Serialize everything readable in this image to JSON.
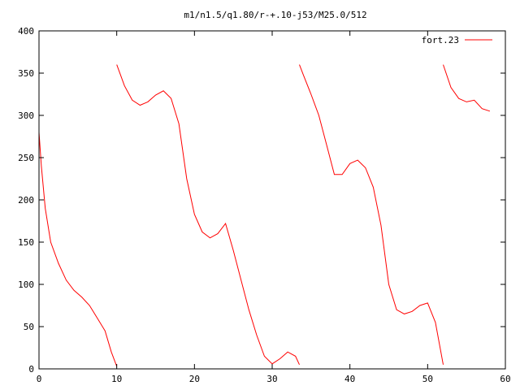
{
  "chart_data": {
    "type": "line",
    "title": "m1/n1.5/q1.80/r-+.10-j53/M25.0/512",
    "xlabel": "",
    "ylabel": "",
    "xlim": [
      0,
      60
    ],
    "ylim": [
      0,
      400
    ],
    "xticks": [
      0,
      10,
      20,
      30,
      40,
      50,
      60
    ],
    "yticks": [
      0,
      50,
      100,
      150,
      200,
      250,
      300,
      350,
      400
    ],
    "grid": false,
    "legend_position": "top-right",
    "series": [
      {
        "name": "fort.23",
        "color": "#ff0000",
        "values": [
          [
            0,
            280
          ],
          [
            0.3,
            240
          ],
          [
            0.8,
            190
          ],
          [
            1.5,
            150
          ],
          [
            2.5,
            125
          ],
          [
            3.5,
            105
          ],
          [
            4.5,
            93
          ],
          [
            5.5,
            85
          ],
          [
            6.5,
            75
          ],
          [
            7.5,
            60
          ],
          [
            8.5,
            45
          ],
          [
            9.3,
            20
          ],
          [
            10.0,
            3
          ],
          [
            10.0,
            360
          ],
          [
            11,
            335
          ],
          [
            12,
            318
          ],
          [
            13,
            312
          ],
          [
            14,
            316
          ],
          [
            15,
            324
          ],
          [
            16,
            329
          ],
          [
            17,
            320
          ],
          [
            18,
            290
          ],
          [
            19,
            225
          ],
          [
            20,
            183
          ],
          [
            21,
            162
          ],
          [
            22,
            155
          ],
          [
            23,
            160
          ],
          [
            24,
            172
          ],
          [
            25,
            140
          ],
          [
            26,
            105
          ],
          [
            27,
            70
          ],
          [
            28,
            40
          ],
          [
            29,
            15
          ],
          [
            30,
            6
          ],
          [
            31,
            12
          ],
          [
            32,
            20
          ],
          [
            33,
            15
          ],
          [
            33.5,
            5
          ],
          [
            33.5,
            360
          ],
          [
            34,
            348
          ],
          [
            35,
            325
          ],
          [
            36,
            300
          ],
          [
            37,
            265
          ],
          [
            38,
            230
          ],
          [
            39,
            230
          ],
          [
            40,
            243
          ],
          [
            41,
            247
          ],
          [
            42,
            238
          ],
          [
            43,
            215
          ],
          [
            44,
            170
          ],
          [
            45,
            100
          ],
          [
            46,
            70
          ],
          [
            47,
            65
          ],
          [
            48,
            68
          ],
          [
            49,
            75
          ],
          [
            50,
            78
          ],
          [
            51,
            55
          ],
          [
            52,
            5
          ],
          [
            52,
            360
          ],
          [
            53,
            333
          ],
          [
            54,
            320
          ],
          [
            55,
            316
          ],
          [
            56,
            318
          ],
          [
            57,
            308
          ],
          [
            58,
            305
          ]
        ]
      }
    ]
  }
}
